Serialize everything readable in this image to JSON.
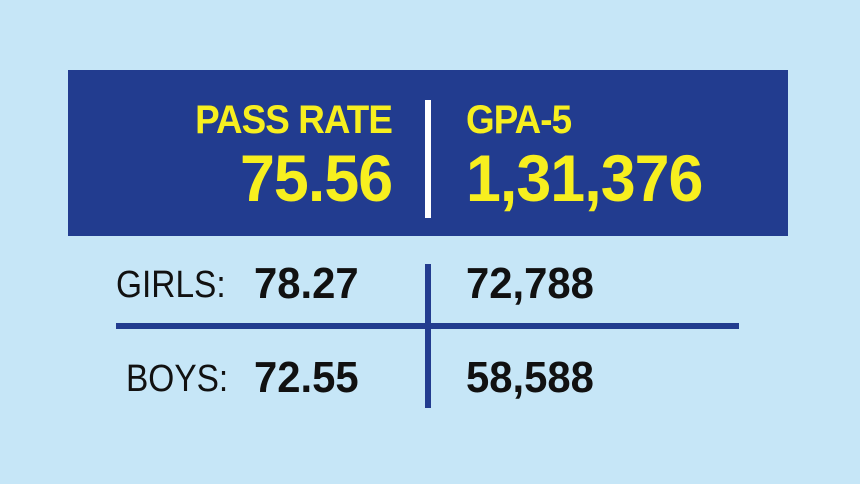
{
  "banner": {
    "pass_rate_label": "PASS RATE",
    "pass_rate_value": "75.56",
    "gpa5_label": "GPA-5",
    "gpa5_value": "1,31,376"
  },
  "rows": [
    {
      "label": "GIRLS:",
      "pass_rate": "78.27",
      "gpa5": "72,788"
    },
    {
      "label": "BOYS:",
      "pass_rate": "72.55",
      "gpa5": "58,588"
    }
  ],
  "colors": {
    "background": "#c6e6f7",
    "banner": "#223c8f",
    "highlight": "#f7ef1f",
    "divider": "#223c8f",
    "text": "#111111"
  }
}
